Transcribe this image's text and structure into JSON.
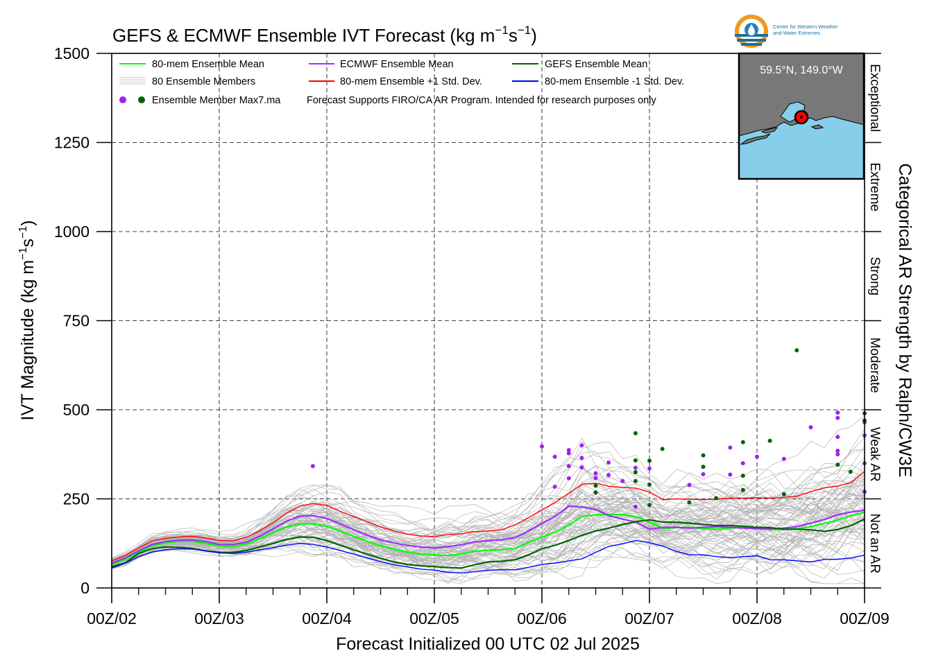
{
  "title": "GEFS & ECMWF Ensemble IVT Forecast (kg m",
  "title_units": {
    "m_exp": "−1",
    "s": "s",
    "s_exp": "−1",
    "close": ")"
  },
  "logo": {
    "line1": "Center for Western Weather",
    "line2": "and Water Extremes"
  },
  "colors": {
    "ens_mean": "#00ff00",
    "ecmwf_mean": "#9b30ff",
    "gefs_mean": "#006400",
    "plus_sd": "#ff0000",
    "minus_sd": "#0000ff",
    "members": "#b4b4b4",
    "dot_ecmwf": "#a020f0",
    "dot_gefs": "#006400",
    "map_land": "#787878",
    "map_water": "#87ceeb"
  },
  "legend": {
    "ens_mean": "80-mem Ensemble Mean",
    "ecmwf_mean": "ECMWF Ensemble Mean",
    "gefs_mean": "GEFS Ensemble Mean",
    "members": "80 Ensemble Members",
    "plus_sd": "80-mem Ensemble +1 Std. Dev.",
    "minus_sd": "80-mem Ensemble -1 Std. Dev.",
    "max_dots": "Ensemble Member Max7.ma",
    "note": "Forecast Supports FIRO/CA AR Program. Intended for research purposes only"
  },
  "inset": {
    "location": "59.5°N, 149.0°W"
  },
  "right_axis_title": "Categorical AR Strength by Ralph/CW3E",
  "categories": [
    {
      "label": "Exceptional",
      "from": 1250,
      "to": 1500
    },
    {
      "label": "Extreme",
      "from": 1000,
      "to": 1250
    },
    {
      "label": "Strong",
      "from": 750,
      "to": 1000
    },
    {
      "label": "Moderate",
      "from": 500,
      "to": 750
    },
    {
      "label": "Weak AR",
      "from": 250,
      "to": 500
    },
    {
      "label": "Not an AR",
      "from": 0,
      "to": 250
    }
  ],
  "chart_data": {
    "type": "line",
    "title": "GEFS & ECMWF Ensemble IVT Forecast (kg m⁻¹s⁻¹)",
    "xlabel": "Forecast Initialized 00 UTC 02 Jul 2025",
    "ylabel": "IVT Magnitude (kg m",
    "ylabel_units": {
      "m_exp": "−1",
      "s": "s",
      "s_exp": "−1",
      "close": ")"
    },
    "x_unit": "days after 00Z/02",
    "xlim": [
      0,
      7
    ],
    "ylim": [
      0,
      1500
    ],
    "xticks": [
      0,
      1,
      2,
      3,
      4,
      5,
      6,
      7
    ],
    "xtick_labels": [
      "00Z/02",
      "00Z/03",
      "00Z/04",
      "00Z/05",
      "00Z/06",
      "00Z/07",
      "00Z/08",
      "00Z/09"
    ],
    "yticks": [
      0,
      250,
      500,
      750,
      1000,
      1250,
      1500
    ],
    "ytick_labels": [
      "0",
      "250",
      "500",
      "750",
      "1000",
      "1250",
      "1500"
    ],
    "grid": true,
    "legend_position": "top-left",
    "x": [
      0,
      0.125,
      0.25,
      0.375,
      0.5,
      0.625,
      0.75,
      0.875,
      1,
      1.125,
      1.25,
      1.375,
      1.5,
      1.625,
      1.75,
      1.875,
      2,
      2.125,
      2.25,
      2.375,
      2.5,
      2.625,
      2.75,
      2.875,
      3,
      3.125,
      3.25,
      3.375,
      3.5,
      3.625,
      3.75,
      3.875,
      4,
      4.125,
      4.25,
      4.375,
      4.5,
      4.625,
      4.75,
      4.875,
      5,
      5.125,
      5.25,
      5.375,
      5.5,
      5.625,
      5.75,
      5.875,
      6,
      6.125,
      6.25,
      6.375,
      6.5,
      6.625,
      6.75,
      6.875,
      7
    ],
    "series": [
      {
        "name": "80-mem Ensemble Mean",
        "key": "ens_mean",
        "width": 2.2,
        "values": [
          66,
          80,
          100,
          118,
          127,
          131,
          131,
          125,
          118,
          117,
          123,
          137,
          155,
          171,
          180,
          180,
          173,
          160,
          145,
          131,
          118,
          109,
          100,
          95,
          93,
          91,
          95,
          103,
          106,
          107,
          111,
          128,
          142,
          157,
          176,
          201,
          205,
          206,
          206,
          200,
          185,
          167,
          169,
          170,
          166,
          165,
          168,
          170,
          167,
          165,
          164,
          166,
          172,
          181,
          190,
          203,
          212
        ]
      },
      {
        "name": "ECMWF Ensemble Mean",
        "key": "ecmwf_mean",
        "width": 2.2,
        "values": [
          70,
          84,
          104,
          122,
          130,
          134,
          135,
          130,
          122,
          122,
          128,
          145,
          166,
          187,
          202,
          203,
          195,
          180,
          163,
          148,
          135,
          126,
          119,
          115,
          112,
          116,
          121,
          129,
          133,
          135,
          141,
          160,
          181,
          201,
          230,
          227,
          220,
          203,
          193,
          185,
          165,
          170,
          170,
          168,
          170,
          172,
          170,
          168,
          166,
          165,
          168,
          172,
          182,
          192,
          205,
          213,
          218
        ]
      },
      {
        "name": "GEFS Ensemble Mean",
        "key": "gefs_mean",
        "width": 2.2,
        "values": [
          60,
          70,
          97,
          110,
          115,
          114,
          111,
          104,
          100,
          100,
          105,
          115,
          125,
          136,
          143,
          142,
          133,
          120,
          107,
          95,
          83,
          73,
          66,
          62,
          60,
          57,
          56,
          65,
          73,
          75,
          79,
          93,
          110,
          120,
          133,
          148,
          160,
          168,
          178,
          186,
          191,
          185,
          184,
          182,
          178,
          175,
          175,
          173,
          170,
          169,
          165,
          165,
          163,
          159,
          164,
          175,
          193
        ]
      },
      {
        "name": "80-mem Ensemble +1 Std. Dev.",
        "key": "plus_sd",
        "width": 1.4,
        "values": [
          76,
          91,
          112,
          132,
          139,
          143,
          145,
          140,
          133,
          132,
          142,
          160,
          183,
          210,
          230,
          237,
          232,
          215,
          200,
          186,
          171,
          160,
          151,
          146,
          144,
          150,
          152,
          158,
          160,
          163,
          177,
          197,
          219,
          240,
          266,
          291,
          294,
          285,
          282,
          280,
          269,
          248,
          250,
          249,
          248,
          249,
          252,
          252,
          253,
          252,
          254,
          258,
          270,
          281,
          286,
          296,
          327
        ]
      },
      {
        "name": "80-mem Ensemble -1 Std. Dev.",
        "key": "minus_sd",
        "width": 1.4,
        "values": [
          56,
          69,
          88,
          101,
          107,
          110,
          109,
          104,
          98,
          97,
          100,
          107,
          113,
          120,
          125,
          122,
          115,
          105,
          95,
          84,
          74,
          65,
          59,
          53,
          50,
          44,
          42,
          46,
          50,
          51,
          51,
          58,
          66,
          70,
          76,
          82,
          100,
          117,
          124,
          133,
          127,
          117,
          103,
          93,
          93,
          88,
          85,
          88,
          90,
          79,
          79,
          76,
          73,
          80,
          81,
          84,
          92
        ]
      }
    ],
    "member_count": 80,
    "member_max_points": [
      {
        "x": 1.87,
        "y": 342,
        "model": "ECMWF"
      },
      {
        "x": 4.0,
        "y": 397,
        "model": "ECMWF"
      },
      {
        "x": 4.12,
        "y": 368,
        "model": "ECMWF"
      },
      {
        "x": 4.25,
        "y": 387,
        "model": "ECMWF"
      },
      {
        "x": 4.25,
        "y": 378,
        "model": "ECMWF"
      },
      {
        "x": 4.25,
        "y": 342,
        "model": "ECMWF"
      },
      {
        "x": 4.25,
        "y": 308,
        "model": "ECMWF"
      },
      {
        "x": 4.37,
        "y": 400,
        "model": "ECMWF"
      },
      {
        "x": 4.37,
        "y": 365,
        "model": "ECMWF"
      },
      {
        "x": 4.37,
        "y": 338,
        "model": "ECMWF"
      },
      {
        "x": 4.12,
        "y": 284,
        "model": "ECMWF"
      },
      {
        "x": 4.5,
        "y": 322,
        "model": "ECMWF"
      },
      {
        "x": 4.5,
        "y": 308,
        "model": "ECMWF"
      },
      {
        "x": 4.62,
        "y": 352,
        "model": "ECMWF"
      },
      {
        "x": 4.62,
        "y": 317,
        "model": "ECMWF"
      },
      {
        "x": 4.75,
        "y": 300,
        "model": "ECMWF"
      },
      {
        "x": 4.87,
        "y": 337,
        "model": "ECMWF"
      },
      {
        "x": 4.87,
        "y": 228,
        "model": "ECMWF"
      },
      {
        "x": 5.0,
        "y": 335,
        "model": "ECMWF"
      },
      {
        "x": 5.37,
        "y": 289,
        "model": "ECMWF"
      },
      {
        "x": 5.5,
        "y": 319,
        "model": "ECMWF"
      },
      {
        "x": 5.75,
        "y": 394,
        "model": "ECMWF"
      },
      {
        "x": 5.75,
        "y": 318,
        "model": "ECMWF"
      },
      {
        "x": 5.87,
        "y": 350,
        "model": "ECMWF"
      },
      {
        "x": 6.0,
        "y": 368,
        "model": "ECMWF"
      },
      {
        "x": 6.25,
        "y": 362,
        "model": "ECMWF"
      },
      {
        "x": 6.5,
        "y": 451,
        "model": "ECMWF"
      },
      {
        "x": 6.75,
        "y": 492,
        "model": "ECMWF"
      },
      {
        "x": 6.75,
        "y": 477,
        "model": "ECMWF"
      },
      {
        "x": 6.75,
        "y": 424,
        "model": "ECMWF"
      },
      {
        "x": 6.75,
        "y": 385,
        "model": "ECMWF"
      },
      {
        "x": 6.75,
        "y": 375,
        "model": "ECMWF"
      },
      {
        "x": 7.0,
        "y": 465,
        "model": "ECMWF"
      },
      {
        "x": 7.0,
        "y": 428,
        "model": "ECMWF"
      },
      {
        "x": 7.0,
        "y": 350,
        "model": "ECMWF"
      },
      {
        "x": 7.0,
        "y": 270,
        "model": "ECMWF"
      },
      {
        "x": 4.5,
        "y": 287,
        "model": "GEFS"
      },
      {
        "x": 4.5,
        "y": 268,
        "model": "GEFS"
      },
      {
        "x": 4.87,
        "y": 434,
        "model": "GEFS"
      },
      {
        "x": 4.87,
        "y": 358,
        "model": "GEFS"
      },
      {
        "x": 4.87,
        "y": 325,
        "model": "GEFS"
      },
      {
        "x": 4.87,
        "y": 300,
        "model": "GEFS"
      },
      {
        "x": 5.0,
        "y": 357,
        "model": "GEFS"
      },
      {
        "x": 5.0,
        "y": 290,
        "model": "GEFS"
      },
      {
        "x": 5.0,
        "y": 233,
        "model": "GEFS"
      },
      {
        "x": 5.12,
        "y": 390,
        "model": "GEFS"
      },
      {
        "x": 5.37,
        "y": 240,
        "model": "GEFS"
      },
      {
        "x": 5.5,
        "y": 372,
        "model": "GEFS"
      },
      {
        "x": 5.5,
        "y": 340,
        "model": "GEFS"
      },
      {
        "x": 5.62,
        "y": 252,
        "model": "GEFS"
      },
      {
        "x": 5.87,
        "y": 409,
        "model": "GEFS"
      },
      {
        "x": 5.87,
        "y": 315,
        "model": "GEFS"
      },
      {
        "x": 5.87,
        "y": 275,
        "model": "GEFS"
      },
      {
        "x": 6.12,
        "y": 413,
        "model": "GEFS"
      },
      {
        "x": 6.25,
        "y": 263,
        "model": "GEFS"
      },
      {
        "x": 6.37,
        "y": 667,
        "model": "GEFS"
      },
      {
        "x": 6.75,
        "y": 346,
        "model": "GEFS"
      },
      {
        "x": 6.87,
        "y": 326,
        "model": "GEFS"
      },
      {
        "x": 7.0,
        "y": 490,
        "model": "GEFS"
      },
      {
        "x": 7.0,
        "y": 470,
        "model": "GEFS"
      }
    ]
  }
}
